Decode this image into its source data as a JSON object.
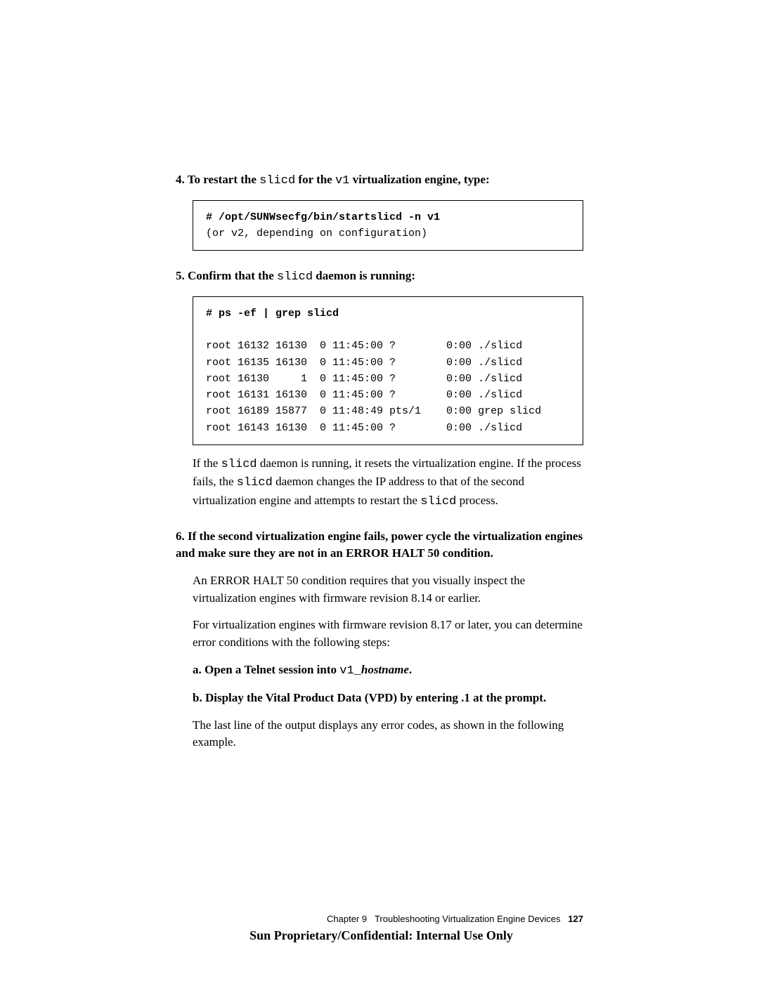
{
  "step4": {
    "prefix": "4. To restart the ",
    "mono1": "slicd",
    "mid1": " for the ",
    "mono2": "v1",
    "suffix": " virtualization engine, type",
    "colon": ":",
    "code_cmd": "# /opt/SUNWsecfg/bin/startslicd -n v1",
    "code_note": "(or v2, depending on configuration)"
  },
  "step5": {
    "prefix": "5. Confirm that the ",
    "mono": "slicd",
    "suffix": " daemon is running:",
    "code_cmd": "# ps -ef | grep slicd",
    "rows": [
      "root 16132 16130  0 11:45:00 ?        0:00 ./slicd",
      "root 16135 16130  0 11:45:00 ?        0:00 ./slicd",
      "root 16130     1  0 11:45:00 ?        0:00 ./slicd",
      "root 16131 16130  0 11:45:00 ?        0:00 ./slicd",
      "root 16189 15877  0 11:48:49 pts/1    0:00 grep slicd",
      "root 16143 16130  0 11:45:00 ?        0:00 ./slicd"
    ],
    "explain_pre": "If the ",
    "explain_m1": "slicd",
    "explain_mid1": " daemon is running, it resets the virtualization engine. If the process fails, the ",
    "explain_m2": "slicd",
    "explain_mid2": " daemon changes the IP address to that of the second virtualization engine and attempts to restart the ",
    "explain_m3": "slicd",
    "explain_post": " process."
  },
  "step6": {
    "head": "6. If the second virtualization engine fails, power cycle the virtualization engines and make sure they are not in an ERROR HALT 50 condition.",
    "p1": "An ERROR HALT 50 condition requires that you visually inspect the virtualization engines with firmware revision 8.14 or earlier.",
    "p2": "For virtualization engines with firmware revision 8.17 or later, you can determine error conditions with the following steps:",
    "sub_a_pre": "a. Open a Telnet session into ",
    "sub_a_mono": "v1_",
    "sub_a_italic": "hostname",
    "sub_a_post": ".",
    "sub_b": "b. Display the Vital Product Data (VPD) by entering .1 at the prompt.",
    "p3": "The last line of the output displays any error codes, as shown in the following example."
  },
  "footer": {
    "chapter": "Chapter 9",
    "title": "Troubleshooting Virtualization Engine Devices",
    "page": "127",
    "confidential": "Sun Proprietary/Confidential: Internal Use Only"
  }
}
